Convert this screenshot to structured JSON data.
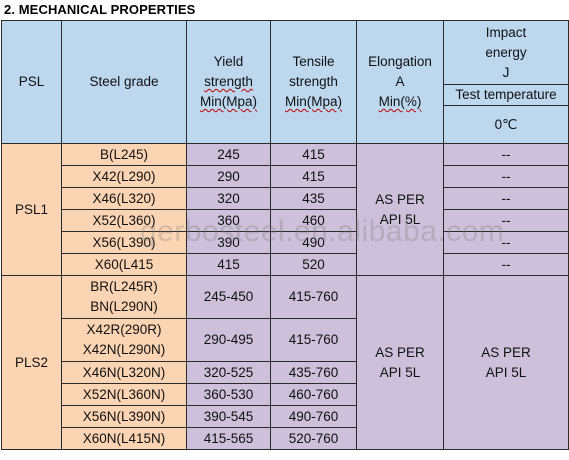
{
  "title": "2. MECHANICAL PROPERTIES",
  "headers": {
    "psl": "PSL",
    "grade": "Steel grade",
    "yield": [
      "Yield",
      "strength",
      "Min(Mpa)"
    ],
    "tensile": [
      "Tensile",
      "strength",
      "Min(Mpa)"
    ],
    "elongation": [
      "Elongation",
      "A",
      "Min(%)"
    ],
    "impact": [
      "Impact",
      "energy",
      "J"
    ],
    "test_temp": "Test temperature",
    "temp_value": "0℃"
  },
  "groups": [
    {
      "psl": "PSL1",
      "elongation": [
        "AS PER",
        "API 5L"
      ],
      "rows": [
        {
          "grade": [
            "B(L245)"
          ],
          "yield": "245",
          "tensile": "415",
          "impact": "--"
        },
        {
          "grade": [
            "X42(L290)"
          ],
          "yield": "290",
          "tensile": "415",
          "impact": "--"
        },
        {
          "grade": [
            "X46(L320)"
          ],
          "yield": "320",
          "tensile": "435",
          "impact": "--"
        },
        {
          "grade": [
            "X52(L360)"
          ],
          "yield": "360",
          "tensile": "460",
          "impact": "--"
        },
        {
          "grade": [
            "X56(L390)"
          ],
          "yield": "390",
          "tensile": "490",
          "impact": "--"
        },
        {
          "grade": [
            "X60(L415"
          ],
          "yield": "415",
          "tensile": "520",
          "impact": "--"
        }
      ]
    },
    {
      "psl": "PLS2",
      "elongation": [
        "AS PER",
        "API 5L"
      ],
      "impact": [
        "AS PER",
        "API 5L"
      ],
      "rows": [
        {
          "grade": [
            "BR(L245R)",
            "BN(L290N)"
          ],
          "yield": "245-450",
          "tensile": "415-760"
        },
        {
          "grade": [
            "X42R(290R)",
            "X42N(L290N)"
          ],
          "yield": "290-495",
          "tensile": "415-760"
        },
        {
          "grade": [
            "X46N(L320N)"
          ],
          "yield": "320-525",
          "tensile": "435-760"
        },
        {
          "grade": [
            "X52N(L360N)"
          ],
          "yield": "360-530",
          "tensile": "460-760"
        },
        {
          "grade": [
            "X56N(L390N)"
          ],
          "yield": "390-545",
          "tensile": "490-760"
        },
        {
          "grade": [
            "X60N(L415N)"
          ],
          "yield": "415-565",
          "tensile": "520-760"
        }
      ]
    }
  ],
  "watermark": "gerbosteel.en.alibaba.com",
  "colors": {
    "header": "#bdd7ee",
    "psl": "#fbd4b4",
    "values": "#ccc0da"
  }
}
